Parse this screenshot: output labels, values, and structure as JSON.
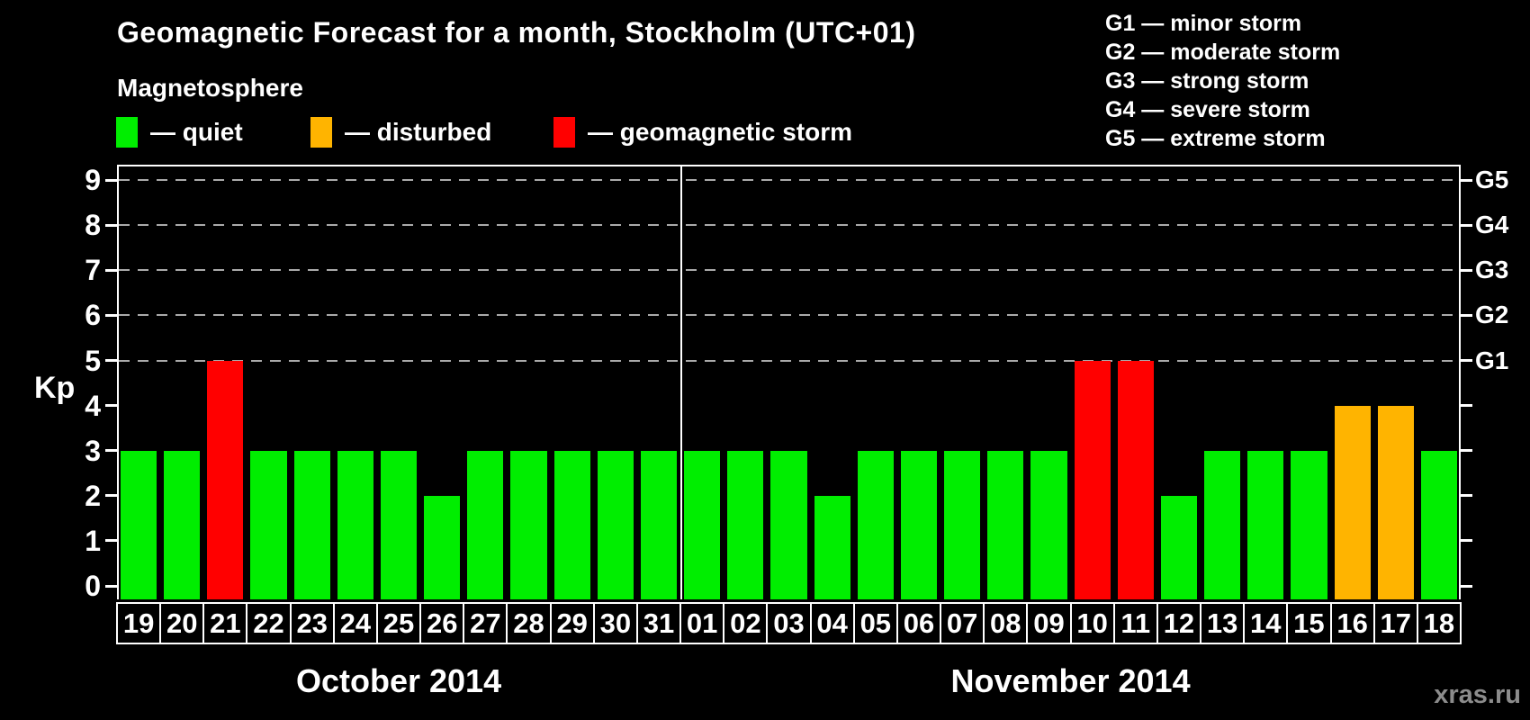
{
  "title": "Geomagnetic Forecast for a month, Stockholm (UTC+01)",
  "legend": {
    "heading": "Magnetosphere",
    "items": [
      {
        "name": "quiet",
        "label": "— quiet",
        "color": "#00ee00"
      },
      {
        "name": "disturbed",
        "label": "— disturbed",
        "color": "#ffb400"
      },
      {
        "name": "storm",
        "label": "— geomagnetic storm",
        "color": "#ff0000"
      }
    ]
  },
  "g_scale_legend": {
    "items": [
      "G1 — minor storm",
      "G2 — moderate storm",
      "G3 — strong storm",
      "G4 — severe storm",
      "G5 — extreme storm"
    ]
  },
  "axes": {
    "y_label": "Kp",
    "y_ticks": [
      0,
      1,
      2,
      3,
      4,
      5,
      6,
      7,
      8,
      9
    ],
    "right_labels": [
      {
        "label": "G1",
        "kp": 5
      },
      {
        "label": "G2",
        "kp": 6
      },
      {
        "label": "G3",
        "kp": 7
      },
      {
        "label": "G4",
        "kp": 8
      },
      {
        "label": "G5",
        "kp": 9
      }
    ]
  },
  "watermark": "xras.ru",
  "chart_data": {
    "type": "bar",
    "ylabel": "Kp",
    "ylim": [
      0,
      9
    ],
    "grid": "dashed horizontal gridlines at Kp 5,6,7,8,9 (G1–G5)",
    "legend_position": "top",
    "status_colors": {
      "quiet": "#00ee00",
      "disturbed": "#ffb400",
      "storm": "#ff0000"
    },
    "months": [
      {
        "label": "October 2014",
        "days": [
          {
            "day": "19",
            "kp": 3,
            "status": "quiet"
          },
          {
            "day": "20",
            "kp": 3,
            "status": "quiet"
          },
          {
            "day": "21",
            "kp": 5,
            "status": "storm"
          },
          {
            "day": "22",
            "kp": 3,
            "status": "quiet"
          },
          {
            "day": "23",
            "kp": 3,
            "status": "quiet"
          },
          {
            "day": "24",
            "kp": 3,
            "status": "quiet"
          },
          {
            "day": "25",
            "kp": 3,
            "status": "quiet"
          },
          {
            "day": "26",
            "kp": 2,
            "status": "quiet"
          },
          {
            "day": "27",
            "kp": 3,
            "status": "quiet"
          },
          {
            "day": "28",
            "kp": 3,
            "status": "quiet"
          },
          {
            "day": "29",
            "kp": 3,
            "status": "quiet"
          },
          {
            "day": "30",
            "kp": 3,
            "status": "quiet"
          },
          {
            "day": "31",
            "kp": 3,
            "status": "quiet"
          }
        ]
      },
      {
        "label": "November 2014",
        "days": [
          {
            "day": "01",
            "kp": 3,
            "status": "quiet"
          },
          {
            "day": "02",
            "kp": 3,
            "status": "quiet"
          },
          {
            "day": "03",
            "kp": 3,
            "status": "quiet"
          },
          {
            "day": "04",
            "kp": 2,
            "status": "quiet"
          },
          {
            "day": "05",
            "kp": 3,
            "status": "quiet"
          },
          {
            "day": "06",
            "kp": 3,
            "status": "quiet"
          },
          {
            "day": "07",
            "kp": 3,
            "status": "quiet"
          },
          {
            "day": "08",
            "kp": 3,
            "status": "quiet"
          },
          {
            "day": "09",
            "kp": 3,
            "status": "quiet"
          },
          {
            "day": "10",
            "kp": 5,
            "status": "storm"
          },
          {
            "day": "11",
            "kp": 5,
            "status": "storm"
          },
          {
            "day": "12",
            "kp": 2,
            "status": "quiet"
          },
          {
            "day": "13",
            "kp": 3,
            "status": "quiet"
          },
          {
            "day": "14",
            "kp": 3,
            "status": "quiet"
          },
          {
            "day": "15",
            "kp": 3,
            "status": "quiet"
          },
          {
            "day": "16",
            "kp": 4,
            "status": "disturbed"
          },
          {
            "day": "17",
            "kp": 4,
            "status": "disturbed"
          },
          {
            "day": "18",
            "kp": 3,
            "status": "quiet"
          }
        ]
      }
    ]
  }
}
